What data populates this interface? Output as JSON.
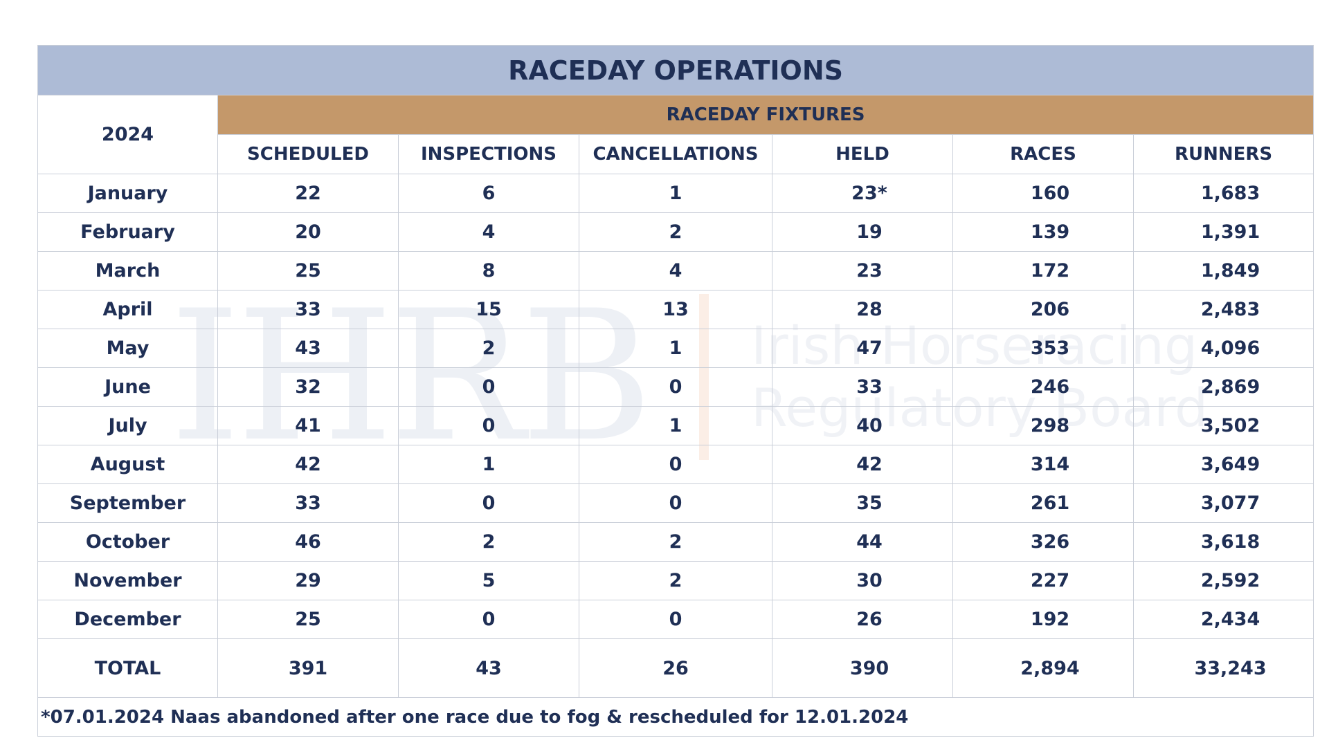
{
  "title": "RACEDAY OPERATIONS",
  "year": "2024",
  "group_header": "RACEDAY FIXTURES",
  "columns": [
    "SCHEDULED",
    "INSPECTIONS",
    "CANCELLATIONS",
    "HELD",
    "RACES",
    "RUNNERS"
  ],
  "rows": [
    {
      "month": "January",
      "values": [
        "22",
        "6",
        "1",
        "23*",
        "160",
        "1,683"
      ]
    },
    {
      "month": "February",
      "values": [
        "20",
        "4",
        "2",
        "19",
        "139",
        "1,391"
      ]
    },
    {
      "month": "March",
      "values": [
        "25",
        "8",
        "4",
        "23",
        "172",
        "1,849"
      ]
    },
    {
      "month": "April",
      "values": [
        "33",
        "15",
        "13",
        "28",
        "206",
        "2,483"
      ]
    },
    {
      "month": "May",
      "values": [
        "43",
        "2",
        "1",
        "47",
        "353",
        "4,096"
      ]
    },
    {
      "month": "June",
      "values": [
        "32",
        "0",
        "0",
        "33",
        "246",
        "2,869"
      ]
    },
    {
      "month": "July",
      "values": [
        "41",
        "0",
        "1",
        "40",
        "298",
        "3,502"
      ]
    },
    {
      "month": "August",
      "values": [
        "42",
        "1",
        "0",
        "42",
        "314",
        "3,649"
      ]
    },
    {
      "month": "September",
      "values": [
        "33",
        "0",
        "0",
        "35",
        "261",
        "3,077"
      ]
    },
    {
      "month": "October",
      "values": [
        "46",
        "2",
        "2",
        "44",
        "326",
        "3,618"
      ]
    },
    {
      "month": "November",
      "values": [
        "29",
        "5",
        "2",
        "30",
        "227",
        "2,592"
      ]
    },
    {
      "month": "December",
      "values": [
        "25",
        "0",
        "0",
        "26",
        "192",
        "2,434"
      ]
    }
  ],
  "total": {
    "label": "TOTAL",
    "values": [
      "391",
      "43",
      "26",
      "390",
      "2,894",
      "33,243"
    ]
  },
  "footnote": "*07.01.2024 Naas abandoned after one race due to fog & rescheduled for 12.01.2024",
  "watermark": {
    "logo": "IHRB",
    "line1": "Irish Horseracing",
    "line2": "Regulatory Board"
  },
  "colors": {
    "title_band": "#adbbd6",
    "fixtures_band": "#c4986a",
    "text": "#1f2f55",
    "grid": "#c9ced8"
  }
}
